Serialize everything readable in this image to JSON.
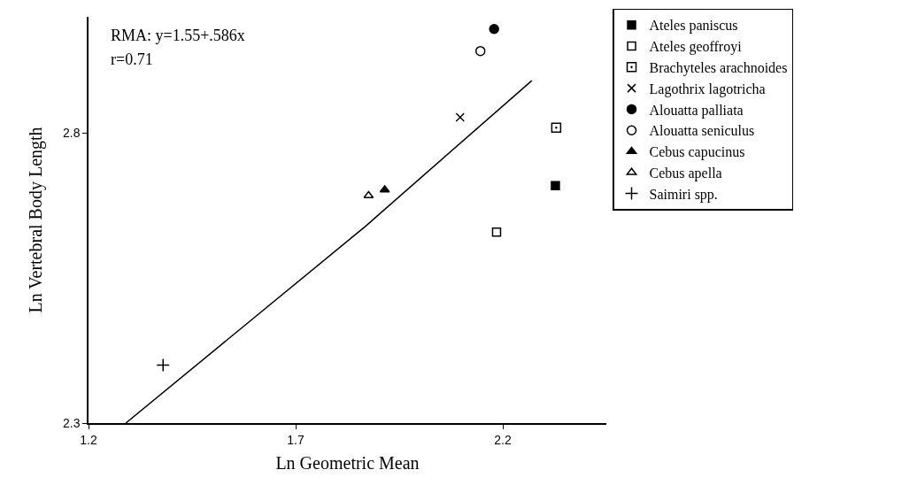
{
  "chart_data": {
    "type": "scatter",
    "xlabel": "Ln Geometric Mean",
    "ylabel": "Ln Vertebral Body Length",
    "xlim": [
      1.2,
      2.45
    ],
    "ylim": [
      2.3,
      3.0
    ],
    "xticks": [
      1.2,
      1.7,
      2.2
    ],
    "yticks": [
      2.3,
      2.8
    ],
    "grid": false,
    "legend": "top right",
    "annotations": [
      "RMA: y=1.55+.586x",
      "r=0.71"
    ],
    "series": [
      {
        "name": "Ateles paniscus",
        "color": "#000000",
        "marker": "square",
        "x": [
          2.327
        ],
        "values": [
          2.709
        ]
      },
      {
        "name": "Ateles geoffroyi",
        "color": "#000000",
        "marker": "square-open",
        "x": [
          2.185
        ],
        "values": [
          2.629
        ]
      },
      {
        "name": "Brachyteles arachnoides",
        "color": "#000000",
        "marker": "square-open-dot",
        "x": [
          2.329
        ],
        "values": [
          2.809
        ]
      },
      {
        "name": "Lagothrix lagotricha",
        "color": "#000000",
        "marker": "x",
        "x": [
          2.097
        ],
        "values": [
          2.827
        ]
      },
      {
        "name": "Alouatta palliata",
        "color": "#000000",
        "marker": "circle",
        "x": [
          2.179
        ],
        "values": [
          2.979
        ]
      },
      {
        "name": "Alouatta seniculus",
        "color": "#000000",
        "marker": "circle-open",
        "x": [
          2.146
        ],
        "values": [
          2.941
        ]
      },
      {
        "name": "Cebus capucinus",
        "color": "#000000",
        "marker": "triangle",
        "x": [
          1.915
        ],
        "values": [
          2.702
        ]
      },
      {
        "name": "Cebus apella",
        "color": "#000000",
        "marker": "triangle-open",
        "x": [
          1.876
        ],
        "values": [
          2.692
        ]
      },
      {
        "name": "Saimiri spp.",
        "color": "#000000",
        "marker": "cross",
        "x": [
          1.38
        ],
        "values": [
          2.4
        ]
      },
      {
        "type": "line",
        "color": "#000000",
        "marker": "none",
        "x": [
          1.29,
          1.87,
          1.91,
          2.27
        ],
        "values": [
          2.3,
          2.64,
          2.665,
          2.89
        ]
      }
    ]
  }
}
